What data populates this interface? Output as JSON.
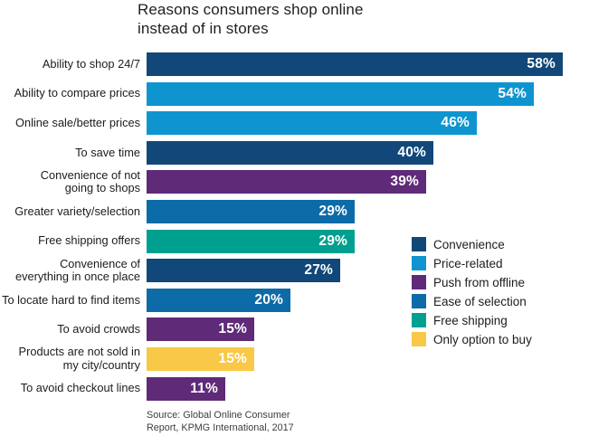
{
  "title": "Reasons consumers shop online\ninstead of in stores",
  "source": "Source: Global Online Consumer\nReport, KPMG International, 2017",
  "chart_data": {
    "type": "bar",
    "orientation": "horizontal",
    "unit": "%",
    "title": "Reasons consumers shop online instead of in stores",
    "xlabel": "",
    "ylabel": "",
    "xlim": [
      0,
      58
    ],
    "grid": false,
    "legend_position": "right",
    "legend": [
      {
        "label": "Convenience",
        "color": "#114779"
      },
      {
        "label": "Price-related",
        "color": "#0e95cf"
      },
      {
        "label": "Push from offline",
        "color": "#5f2a78"
      },
      {
        "label": "Ease of selection",
        "color": "#0d6ba8"
      },
      {
        "label": "Free shipping",
        "color": "#00a091"
      },
      {
        "label": "Only option to buy",
        "color": "#f8c846"
      }
    ],
    "rows": [
      {
        "label": "Ability to shop 24/7",
        "value": 58,
        "display": "58%",
        "category": "Convenience"
      },
      {
        "label": "Ability to compare prices",
        "value": 54,
        "display": "54%",
        "category": "Price-related"
      },
      {
        "label": "Online sale/better prices",
        "value": 46,
        "display": "46%",
        "category": "Price-related"
      },
      {
        "label": "To save time",
        "value": 40,
        "display": "40%",
        "category": "Convenience"
      },
      {
        "label": "Convenience of not\ngoing to shops",
        "value": 39,
        "display": "39%",
        "category": "Push from offline"
      },
      {
        "label": "Greater variety/selection",
        "value": 29,
        "display": "29%",
        "category": "Ease of selection"
      },
      {
        "label": "Free shipping offers",
        "value": 29,
        "display": "29%",
        "category": "Free shipping"
      },
      {
        "label": "Convenience of\neverything in once place",
        "value": 27,
        "display": "27%",
        "category": "Convenience"
      },
      {
        "label": "To locate hard to find items",
        "value": 20,
        "display": "20%",
        "category": "Ease of selection"
      },
      {
        "label": "To avoid crowds",
        "value": 15,
        "display": "15%",
        "category": "Push from offline"
      },
      {
        "label": "Products are not sold in\nmy city/country",
        "value": 15,
        "display": "15%",
        "category": "Only option to buy"
      },
      {
        "label": "To avoid checkout lines",
        "value": 11,
        "display": "11%",
        "category": "Push from offline"
      }
    ]
  }
}
